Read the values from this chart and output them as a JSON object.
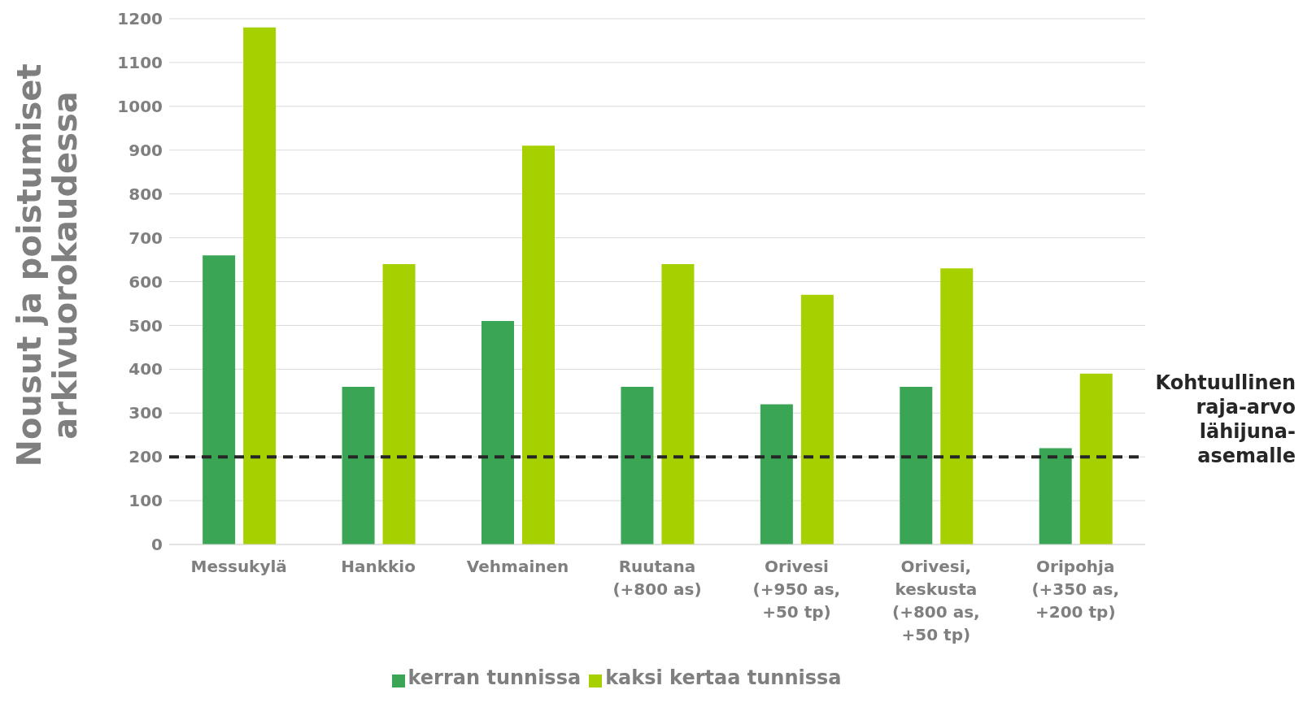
{
  "chart_data": {
    "type": "bar",
    "ylabel": "Nousut ja poistumiset arkivuorokaudessa",
    "categories": [
      "Messukylä",
      "Hankkio",
      "Vehmainen",
      "Ruutana (+800 as)",
      "Orivesi (+950 as, +50 tp)",
      "Orivesi, keskusta (+800 as, +50 tp)",
      "Oripohja (+350 as, +200 tp)"
    ],
    "series": [
      {
        "name": "kerran tunnissa",
        "color": "#3aa655",
        "values": [
          660,
          360,
          510,
          360,
          320,
          360,
          220
        ]
      },
      {
        "name": "kaksi kertaa tunnissa",
        "color": "#a6d000",
        "values": [
          1180,
          640,
          910,
          640,
          570,
          630,
          390
        ]
      }
    ],
    "ylim": [
      0,
      1200
    ],
    "yticks": [
      0,
      100,
      200,
      300,
      400,
      500,
      600,
      700,
      800,
      900,
      1000,
      1100,
      1200
    ],
    "grid": "y",
    "legend": "bottom",
    "ref_lines": [
      {
        "axis": "y",
        "value": 200,
        "label": "Kohtuullinen\nraja-arvo\nlähijuna-\nasemalle",
        "color": "#262626",
        "line_style": "dashed"
      }
    ]
  }
}
